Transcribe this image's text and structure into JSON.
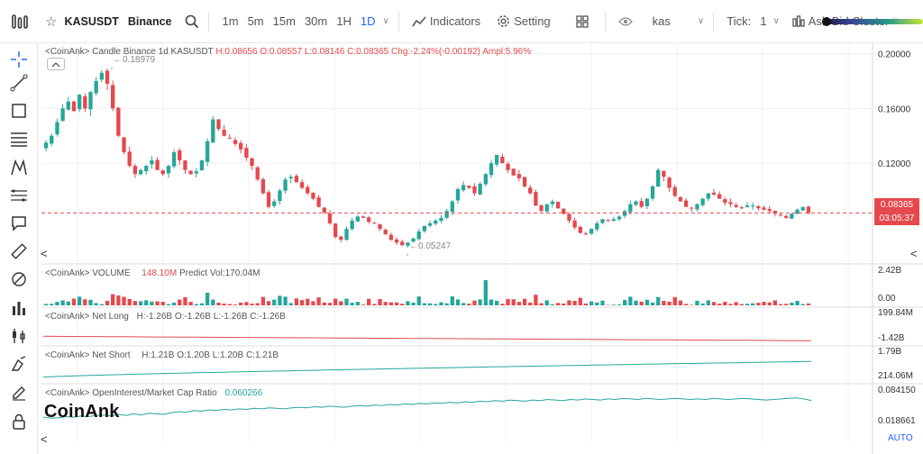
{
  "toolbar": {
    "symbol": "KASUSDT",
    "exchange": "Binance",
    "intervals": [
      "1m",
      "5m",
      "15m",
      "30m",
      "1H",
      "1D"
    ],
    "active_interval": "1D",
    "indicators_label": "Indicators",
    "setting_label": "Setting",
    "search_value": "kas",
    "tick_label": "Tick:",
    "tick_value": "1",
    "cluster_label": "Ask-Bid Cluster"
  },
  "legends": {
    "candle_prefix": "<CoinAnk> Candle  Binance 1d KASUSDT",
    "candle_h": "H:0.08656",
    "candle_o": "O:0.08557",
    "candle_l": "L:0.08146",
    "candle_c": "C:0.08365",
    "candle_chg": "Chg:-2.24%(-0.00192)",
    "candle_ampl": "Ampl:5.96%",
    "volume_prefix": "<CoinAnk> VOLUME",
    "volume_value": "148.10M",
    "volume_predict": "Predict Vol:170.04M",
    "netlong_prefix": "<CoinAnk> Net Long",
    "netlong_h": "H:-1.26B",
    "netlong_o": "O:-1.26B",
    "netlong_l": "L:-1.26B",
    "netlong_c": "C:-1.26B",
    "netshort_prefix": "<CoinAnk> Net Short",
    "netshort_h": "H:1.21B",
    "netshort_o": "O:1.20B",
    "netshort_l": "L:1.20B",
    "netshort_c": "C:1.21B",
    "oi_prefix": "<CoinAnk> OpenInterest/Market Cap Ratio",
    "oi_value": "0.060266"
  },
  "price_axis": {
    "ticks": [
      "0.20000",
      "0.16000",
      "0.12000"
    ],
    "last_price": "0.08365",
    "countdown": "03:05:37"
  },
  "volume_axis": {
    "ticks": [
      "2.42B",
      "0.00"
    ]
  },
  "netlong_axis": {
    "ticks": [
      "199.84M",
      "-1.42B"
    ]
  },
  "netshort_axis": {
    "ticks": [
      "1.79B",
      "214.06M"
    ]
  },
  "oi_axis": {
    "ticks": [
      "0.084150",
      "0.018661"
    ]
  },
  "annotations": {
    "high": "0.18979",
    "low": "0.05247"
  },
  "brand": "CoinAnk",
  "auto_label": "AUTO",
  "colors": {
    "up": "#26a69a",
    "down": "#e5484d",
    "accent": "#2962ff",
    "price_line": "#e5484d"
  },
  "chart_data": [
    {
      "type": "candlestick",
      "title": "<CoinAnk> Candle  Binance 1d KASUSDT",
      "ylim": [
        0.047,
        0.205
      ],
      "y_ticks": [
        0.2,
        0.16,
        0.12
      ],
      "last_price": 0.08365,
      "high_marker": 0.18979,
      "low_marker": 0.05247,
      "close_path": [
        0.135,
        0.14,
        0.15,
        0.16,
        0.165,
        0.158,
        0.17,
        0.16,
        0.172,
        0.18,
        0.186,
        0.178,
        0.16,
        0.14,
        0.128,
        0.118,
        0.112,
        0.115,
        0.118,
        0.122,
        0.115,
        0.112,
        0.118,
        0.128,
        0.122,
        0.115,
        0.112,
        0.114,
        0.122,
        0.136,
        0.152,
        0.145,
        0.14,
        0.138,
        0.134,
        0.13,
        0.124,
        0.118,
        0.108,
        0.098,
        0.088,
        0.092,
        0.1,
        0.108,
        0.11,
        0.106,
        0.102,
        0.098,
        0.094,
        0.088,
        0.084,
        0.076,
        0.066,
        0.064,
        0.072,
        0.078,
        0.081,
        0.08,
        0.077,
        0.076,
        0.072,
        0.068,
        0.064,
        0.062,
        0.06,
        0.062,
        0.065,
        0.07,
        0.074,
        0.076,
        0.078,
        0.08,
        0.085,
        0.092,
        0.101,
        0.104,
        0.102,
        0.098,
        0.105,
        0.112,
        0.12,
        0.126,
        0.12,
        0.115,
        0.111,
        0.109,
        0.103,
        0.098,
        0.089,
        0.085,
        0.09,
        0.092,
        0.087,
        0.083,
        0.078,
        0.073,
        0.069,
        0.068,
        0.072,
        0.076,
        0.079,
        0.078,
        0.079,
        0.081,
        0.085,
        0.09,
        0.092,
        0.088,
        0.094,
        0.103,
        0.115,
        0.11,
        0.102,
        0.096,
        0.092,
        0.088,
        0.087,
        0.09,
        0.094,
        0.098,
        0.097,
        0.094,
        0.091,
        0.09,
        0.088,
        0.087,
        0.089,
        0.089,
        0.087,
        0.086,
        0.085,
        0.083,
        0.082,
        0.08,
        0.083,
        0.086,
        0.088,
        0.08365
      ]
    },
    {
      "type": "bar",
      "title": "<CoinAnk> VOLUME",
      "ylim": [
        0,
        2.42
      ],
      "unit": "B",
      "current_value": "148.10M",
      "predict": "170.04M"
    },
    {
      "type": "line",
      "title": "<CoinAnk> Net Long",
      "ylim": [
        -1.42,
        0.19984
      ],
      "unit": "B",
      "start": -1.05,
      "end": -1.26,
      "color": "#e5484d"
    },
    {
      "type": "line",
      "title": "<CoinAnk> Net Short",
      "ylim": [
        0.21406,
        1.79
      ],
      "unit": "B",
      "start": 0.45,
      "end": 1.21,
      "color": "#26a69a"
    },
    {
      "type": "line",
      "title": "<CoinAnk> OpenInterest/Market Cap Ratio",
      "ylim": [
        0.018661,
        0.08415
      ],
      "current_value": 0.060266,
      "path": [
        0.03,
        0.028,
        0.029,
        0.031,
        0.03,
        0.032,
        0.031,
        0.033,
        0.034,
        0.032,
        0.035,
        0.033,
        0.036,
        0.034,
        0.037,
        0.036,
        0.035,
        0.038,
        0.04,
        0.039,
        0.042,
        0.041,
        0.043,
        0.042,
        0.044,
        0.043,
        0.045,
        0.044,
        0.046,
        0.045,
        0.047,
        0.046,
        0.045,
        0.047,
        0.048,
        0.047,
        0.049,
        0.048,
        0.05,
        0.049,
        0.048,
        0.05,
        0.051,
        0.05,
        0.052,
        0.051,
        0.053,
        0.052,
        0.054,
        0.053,
        0.055,
        0.054,
        0.056,
        0.055,
        0.057,
        0.056,
        0.058,
        0.057,
        0.059,
        0.058,
        0.06,
        0.059,
        0.061,
        0.06,
        0.059,
        0.061,
        0.06,
        0.062,
        0.061,
        0.06,
        0.062,
        0.061,
        0.063,
        0.062,
        0.061,
        0.063,
        0.062,
        0.064,
        0.063,
        0.062,
        0.064,
        0.063,
        0.062,
        0.063,
        0.064,
        0.063,
        0.062,
        0.063,
        0.062,
        0.064,
        0.063,
        0.062,
        0.063,
        0.064,
        0.063,
        0.062,
        0.061,
        0.062,
        0.063,
        0.064,
        0.065,
        0.063,
        0.0603
      ]
    }
  ]
}
